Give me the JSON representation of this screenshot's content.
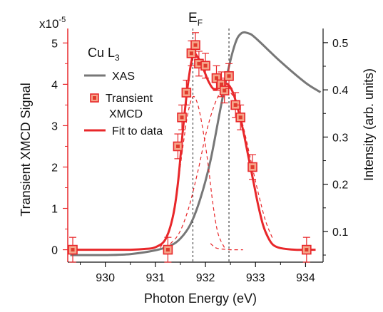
{
  "chart_data": {
    "type": "scatter",
    "xlabel": "Photon Energy (eV)",
    "ylabel_left": "Transient XMCD Signal",
    "ylabel_right": "Intensity (arb. units)",
    "left_scale_prefix": "x10",
    "left_scale_exponent": "-5",
    "fermi_label_main": "E",
    "fermi_label_sub": "F",
    "panel_label_main": "Cu L",
    "panel_label_sub": "3",
    "xlim": [
      929.25,
      934.35
    ],
    "ylim_left": [
      -0.3,
      5.35
    ],
    "ylim_right": [
      0.035,
      0.53
    ],
    "x_ticks": [
      "930",
      "931",
      "932",
      "933",
      "934"
    ],
    "x_tick_values": [
      930,
      931,
      932,
      933,
      934
    ],
    "y_left_ticks": [
      "0",
      "1",
      "2",
      "3",
      "4",
      "5"
    ],
    "y_left_tick_values": [
      0,
      1,
      2,
      3,
      4,
      5
    ],
    "y_right_ticks": [
      "0.1",
      "0.2",
      "0.3",
      "0.4",
      "0.5"
    ],
    "y_right_tick_values": [
      0.1,
      0.2,
      0.3,
      0.4,
      0.5
    ],
    "dashed_vlines_x": [
      931.75,
      932.47
    ],
    "legend": [
      {
        "label": "XAS",
        "style": "line",
        "color": "#777777"
      },
      {
        "label": "Transient XMCD",
        "label_lines": [
          "Transient",
          "XMCD"
        ],
        "style": "marker",
        "color": "#e8272a"
      },
      {
        "label": "Fit to data",
        "style": "line",
        "color": "#e8272a"
      }
    ],
    "series": [
      {
        "name": "Transient XMCD",
        "axis": "left",
        "x": [
          929.35,
          931.25,
          931.45,
          931.53,
          931.62,
          931.72,
          931.8,
          931.87,
          932.0,
          932.22,
          932.32,
          932.38,
          932.47,
          932.6,
          932.7,
          932.94,
          934.02
        ],
        "y": [
          0.0,
          0.0,
          2.5,
          3.2,
          3.8,
          4.75,
          4.95,
          4.5,
          4.45,
          4.15,
          4.0,
          3.85,
          4.2,
          3.5,
          3.2,
          2.0,
          0.0
        ],
        "err": [
          0.3,
          0.3,
          0.3,
          0.3,
          0.3,
          0.3,
          0.3,
          0.3,
          0.3,
          0.3,
          0.3,
          0.3,
          0.3,
          0.3,
          0.3,
          0.3,
          0.3
        ]
      },
      {
        "name": "Fit to data",
        "axis": "left",
        "x": [
          929.3,
          930.0,
          930.5,
          930.8,
          931.0,
          931.2,
          931.35,
          931.45,
          931.55,
          931.65,
          931.75,
          931.85,
          931.95,
          932.05,
          932.15,
          932.25,
          932.35,
          932.45,
          932.55,
          932.65,
          932.75,
          932.85,
          932.95,
          933.05,
          933.15,
          933.25,
          933.35,
          933.5,
          933.8,
          934.2
        ],
        "y": [
          0.0,
          0.0,
          0.0,
          0.02,
          0.06,
          0.25,
          0.8,
          1.6,
          2.9,
          4.0,
          4.7,
          4.65,
          4.4,
          4.1,
          3.9,
          3.9,
          4.0,
          4.0,
          3.8,
          3.4,
          2.9,
          2.3,
          1.7,
          1.1,
          0.6,
          0.3,
          0.12,
          0.04,
          0.0,
          0.0
        ]
      },
      {
        "name": "Fit component 1",
        "axis": "left",
        "style": "dashed",
        "x": [
          931.1,
          931.3,
          931.45,
          931.55,
          931.65,
          931.75,
          931.85,
          931.95,
          932.05,
          932.15,
          932.25,
          932.38
        ],
        "y": [
          0.05,
          0.6,
          1.6,
          2.5,
          3.3,
          3.7,
          3.5,
          2.9,
          2.1,
          1.1,
          0.4,
          0.05
        ]
      },
      {
        "name": "Fit component 2",
        "axis": "left",
        "style": "dashed",
        "x": [
          931.2,
          931.45,
          931.65,
          931.85,
          932.0,
          932.15,
          932.3,
          932.45,
          932.6,
          932.75,
          932.9,
          933.05,
          933.2,
          933.35
        ],
        "y": [
          0.05,
          0.35,
          0.95,
          1.9,
          2.75,
          3.4,
          3.8,
          3.85,
          3.6,
          3.0,
          2.2,
          1.4,
          0.7,
          0.25
        ]
      },
      {
        "name": "Fit component 3",
        "axis": "left",
        "style": "dashed",
        "x": [
          932.1,
          932.2,
          932.3,
          932.4,
          932.5,
          932.6,
          932.75
        ],
        "y": [
          0.15,
          0.05,
          0.02,
          0.01,
          0.0,
          0.0,
          0.0
        ]
      },
      {
        "name": "XAS",
        "axis": "right",
        "x": [
          929.3,
          930.0,
          930.5,
          931.0,
          931.3,
          931.5,
          931.7,
          931.9,
          932.1,
          932.3,
          932.45,
          932.6,
          932.72,
          932.85,
          933.0,
          933.5,
          934.0,
          934.3
        ],
        "y": [
          0.05,
          0.05,
          0.052,
          0.06,
          0.07,
          0.085,
          0.115,
          0.17,
          0.25,
          0.36,
          0.44,
          0.5,
          0.52,
          0.52,
          0.51,
          0.46,
          0.415,
          0.395
        ]
      }
    ]
  }
}
